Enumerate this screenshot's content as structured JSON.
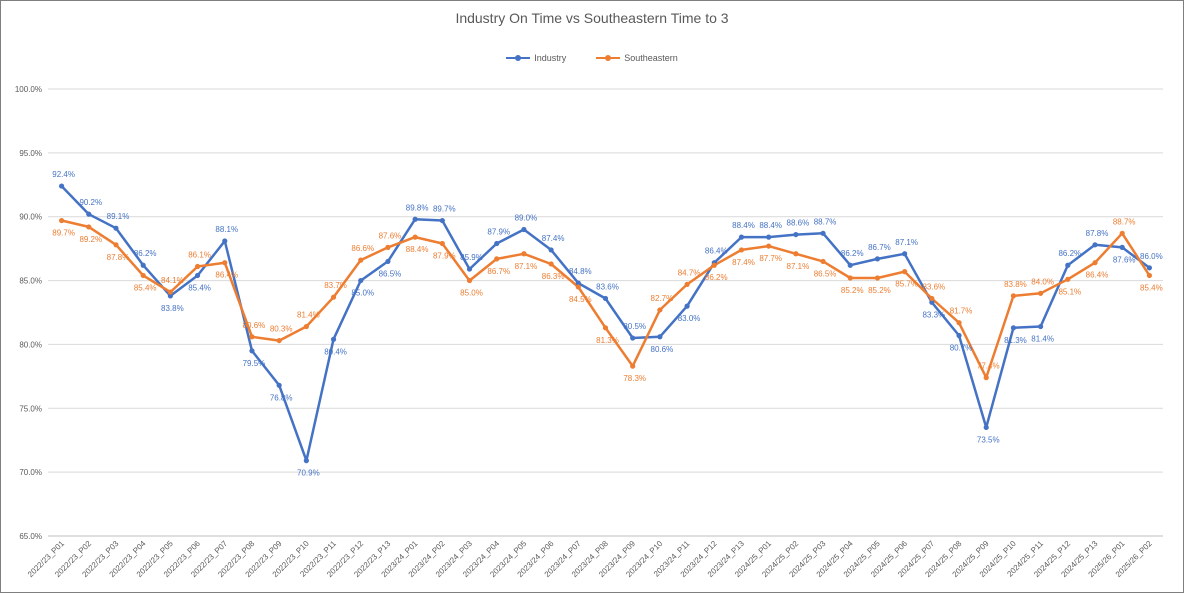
{
  "colors": {
    "industry": "#4472C4",
    "southeastern": "#ED7D31",
    "grid": "#d9d9d9",
    "text": "#595959"
  },
  "chart_data": {
    "type": "line",
    "title": "Industry On Time vs Southeastern Time to 3",
    "xlabel": "",
    "ylabel": "",
    "ylim": [
      65,
      100
    ],
    "yticks": [
      "65.0%",
      "70.0%",
      "75.0%",
      "80.0%",
      "85.0%",
      "90.0%",
      "95.0%",
      "100.0%"
    ],
    "grid": "horizontal",
    "legend_position": "top",
    "categories": [
      "2022/23_P01",
      "2022/23_P02",
      "2022/23_P03",
      "2022/23_P04",
      "2022/23_P05",
      "2022/23_P06",
      "2022/23_P07",
      "2022/23_P08",
      "2022/23_P09",
      "2022/23_P10",
      "2022/23_P11",
      "2022/23_P12",
      "2022/23_P13",
      "2023/24_P01",
      "2023/24_P02",
      "2023/24_P03",
      "2023/24_P04",
      "2023/24_P05",
      "2023/24_P06",
      "2023/24_P07",
      "2023/24_P08",
      "2023/24_P09",
      "2023/24_P10",
      "2023/24_P11",
      "2023/24_P12",
      "2023/24_P13",
      "2024/25_P01",
      "2024/25_P02",
      "2024/25_P03",
      "2024/25_P04",
      "2024/25_P05",
      "2024/25_P06",
      "2024/25_P07",
      "2024/25_P08",
      "2024/25_P09",
      "2024/25_P10",
      "2024/25_P11",
      "2024/25_P12",
      "2024/25_P13",
      "2025/26_P01",
      "2025/26_P02"
    ],
    "series": [
      {
        "name": "Industry",
        "values": [
          92.4,
          90.2,
          89.1,
          86.2,
          83.8,
          85.4,
          88.1,
          79.5,
          76.8,
          70.9,
          80.4,
          85.0,
          86.5,
          89.8,
          89.7,
          85.9,
          87.9,
          89.0,
          87.4,
          84.8,
          83.6,
          80.5,
          80.6,
          83.0,
          86.4,
          88.4,
          88.4,
          88.6,
          88.7,
          86.2,
          86.7,
          87.1,
          83.3,
          80.7,
          73.5,
          81.3,
          81.4,
          86.2,
          87.8,
          87.6,
          86.0
        ],
        "labels": [
          "92.4%",
          "90.2%",
          "89.1%",
          "86.2%",
          "83.8%",
          "85.4%",
          "88.1%",
          "79.5%",
          "76.8%",
          "70.9%",
          "80.4%",
          "85.0%",
          "86.5%",
          "89.8%",
          "89.7%",
          "85.9%",
          "87.9%",
          "89.0%",
          "87.4%",
          "84.8%",
          "83.6%",
          "80.5%",
          "80.6%",
          "83.0%",
          "86.4%",
          "88.4%",
          "88.4%",
          "88.6%",
          "88.7%",
          "86.2%",
          "86.7%",
          "87.1%",
          "83.3%",
          "80.7%",
          "73.5%",
          "81.3%",
          "81.4%",
          "86.2%",
          "87.8%",
          "87.6%",
          "86.0%"
        ]
      },
      {
        "name": "Southeastern",
        "values": [
          89.7,
          89.2,
          87.8,
          85.4,
          84.1,
          86.1,
          86.4,
          80.6,
          80.3,
          81.4,
          83.7,
          86.6,
          87.6,
          88.4,
          87.9,
          85.0,
          86.7,
          87.1,
          86.3,
          84.5,
          81.3,
          78.3,
          82.7,
          84.7,
          86.2,
          87.4,
          87.7,
          87.1,
          86.5,
          85.2,
          85.2,
          85.7,
          83.6,
          81.7,
          77.4,
          83.8,
          84.0,
          85.1,
          86.4,
          88.7,
          85.4
        ],
        "labels": [
          "89.7%",
          "89.2%",
          "87.8%",
          "85.4%",
          "84.1%",
          "86.1%",
          "86.4%",
          "80.6%",
          "80.3%",
          "81.4%",
          "83.7%",
          "86.6%",
          "87.6%",
          "88.4%",
          "87.9%",
          "85.0%",
          "86.7%",
          "87.1%",
          "86.3%",
          "84.5%",
          "81.3%",
          "78.3%",
          "82.7%",
          "84.7%",
          "86.2%",
          "87.4%",
          "87.7%",
          "87.1%",
          "86.5%",
          "85.2%",
          "85.2%",
          "85.7%",
          "83.6%",
          "81.7%",
          "77.4%",
          "83.8%",
          "84.0%",
          "85.1%",
          "86.4%",
          "88.7%",
          "85.4%"
        ]
      }
    ]
  }
}
